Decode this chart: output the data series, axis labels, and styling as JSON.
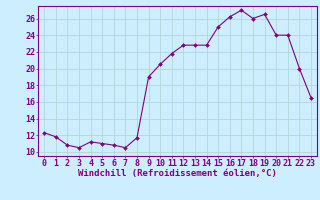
{
  "x": [
    0,
    1,
    2,
    3,
    4,
    5,
    6,
    7,
    8,
    9,
    10,
    11,
    12,
    13,
    14,
    15,
    16,
    17,
    18,
    19,
    20,
    21,
    22,
    23
  ],
  "y": [
    12.3,
    11.8,
    10.8,
    10.5,
    11.2,
    11.0,
    10.8,
    10.5,
    11.7,
    19.0,
    20.5,
    21.8,
    22.8,
    22.8,
    22.8,
    25.0,
    26.2,
    27.0,
    26.0,
    26.5,
    24.0,
    24.0,
    20.0,
    16.5
  ],
  "line_color": "#800080",
  "marker_color": "#800080",
  "bg_color": "#cceeff",
  "grid_color": "#b0d0d0",
  "xlabel": "Windchill (Refroidissement éolien,°C)",
  "xlabel_color": "#800080",
  "ylabel_left_ticks": [
    10,
    12,
    14,
    16,
    18,
    20,
    22,
    24,
    26
  ],
  "ylim": [
    9.5,
    27.5
  ],
  "xlim": [
    -0.5,
    23.5
  ],
  "tick_color": "#800080",
  "font_size": 6,
  "label_font_size": 6.5
}
